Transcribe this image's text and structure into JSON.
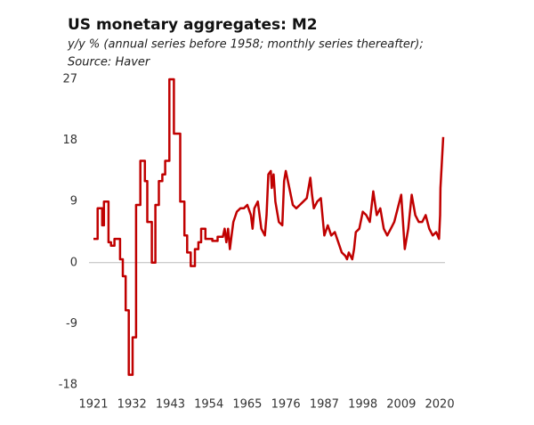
{
  "chart_data": {
    "type": "line",
    "title": "US monetary aggregates: M2",
    "subtitle": [
      "y/y % (annual series before 1958; monthly series thereafter);",
      "Source: Haver"
    ],
    "x": [
      1921,
      1922.2,
      1922.2,
      1923.5,
      1923.5,
      1924,
      1924,
      1925.3,
      1925.3,
      1926,
      1926,
      1927,
      1927,
      1928.6,
      1928.6,
      1929.4,
      1929.4,
      1930.2,
      1930.2,
      1931.1,
      1931.1,
      1932.2,
      1932.2,
      1933.2,
      1933.2,
      1934.4,
      1934.4,
      1935.7,
      1935.7,
      1936.4,
      1936.4,
      1937.7,
      1937.7,
      1938.7,
      1938.7,
      1939.7,
      1939.7,
      1940.7,
      1940.7,
      1941.5,
      1941.5,
      1942.7,
      1942.7,
      1944,
      1944,
      1945.8,
      1945.8,
      1947,
      1947,
      1947.8,
      1947.8,
      1948.8,
      1948.8,
      1950,
      1950,
      1951,
      1951,
      1951.8,
      1951.8,
      1953,
      1953,
      1955,
      1955,
      1956.5,
      1956.5,
      1958,
      1958.5,
      1959,
      1959.5,
      1960,
      1960.5,
      1961,
      1962,
      1963,
      1964,
      1965,
      1966,
      1966.5,
      1967,
      1968,
      1969,
      1970,
      1970.5,
      1971,
      1971.7,
      1972,
      1972.5,
      1973,
      1974,
      1975,
      1975.5,
      1976,
      1977,
      1978,
      1979,
      1980,
      1981,
      1982,
      1983,
      1983.5,
      1984,
      1985,
      1986,
      1987,
      1988,
      1989,
      1990,
      1991,
      1992,
      1993,
      1993.5,
      1994,
      1995,
      1995.5,
      1996,
      1997,
      1998,
      1999,
      2000,
      2001,
      2002,
      2003,
      2004,
      2005,
      2006,
      2007,
      2008,
      2009,
      2010,
      2011,
      2012,
      2013,
      2014,
      2015,
      2016,
      2017,
      2018,
      2019,
      2019.8,
      2020.1,
      2020.2,
      2021
    ],
    "series": [
      {
        "name": "M2",
        "color": "#c00000",
        "values": [
          3.5,
          3.5,
          8,
          8,
          5.5,
          5.5,
          9,
          9,
          3,
          3,
          2.5,
          2.5,
          3.5,
          3.5,
          0.5,
          0.5,
          -2,
          -2,
          -7,
          -7,
          -16.5,
          -16.5,
          -11,
          -11,
          8.5,
          8.5,
          15,
          15,
          12,
          12,
          6,
          6,
          0,
          0,
          8.5,
          8.5,
          12,
          12,
          13,
          13,
          15,
          15,
          27,
          27,
          19,
          19,
          9,
          9,
          4,
          4,
          1.5,
          1.5,
          -0.5,
          -0.5,
          2,
          2,
          3,
          3,
          5,
          5,
          3.5,
          3.5,
          3.2,
          3.2,
          3.8,
          3.8,
          5,
          3,
          5,
          2,
          4,
          6,
          7.5,
          8,
          8,
          8.5,
          7,
          5,
          8,
          9,
          5,
          4,
          7,
          13,
          13.5,
          11,
          13,
          9,
          6,
          5.5,
          12,
          13.5,
          11,
          8.5,
          8,
          8.5,
          9,
          9.5,
          12.5,
          10,
          8,
          9,
          9.5,
          4,
          5.5,
          4,
          4.5,
          3,
          1.5,
          1,
          0.5,
          1.5,
          0.5,
          2,
          4.5,
          5,
          7.5,
          7,
          6,
          10.5,
          7,
          8,
          5,
          4,
          5,
          6,
          8,
          10,
          2,
          5,
          10,
          7,
          6,
          6,
          7,
          5,
          4,
          4.5,
          3.5,
          7,
          11,
          18.5
        ]
      }
    ],
    "xlim": [
      1921,
      2021
    ],
    "ylim": [
      -18,
      27
    ],
    "xticks": [
      1921,
      1932,
      1943,
      1954,
      1965,
      1976,
      1987,
      1998,
      2009,
      2020
    ],
    "yticks": [
      -18,
      -9,
      0,
      9,
      18,
      27
    ]
  }
}
